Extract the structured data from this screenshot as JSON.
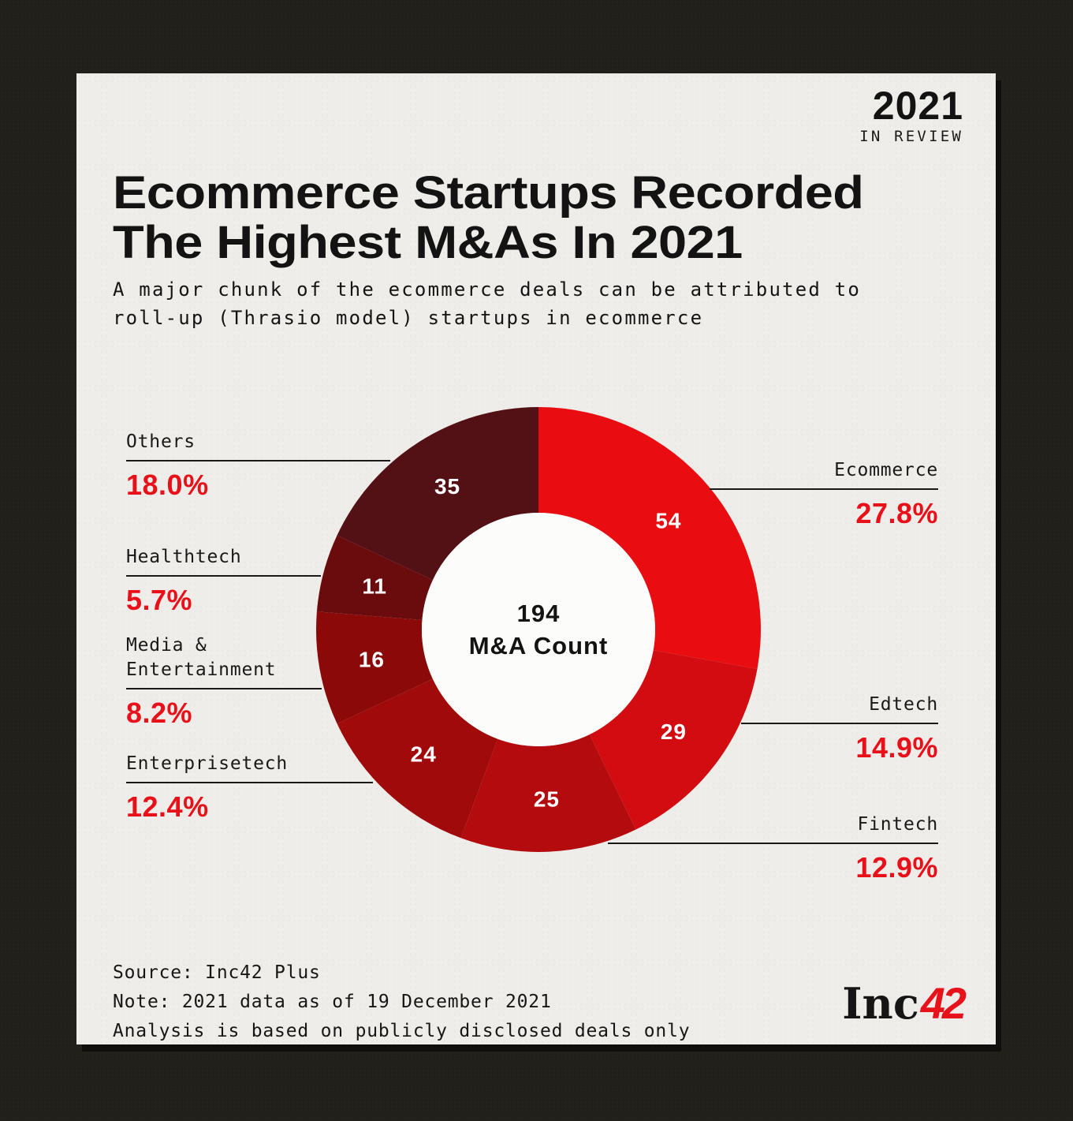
{
  "badge": {
    "year": "2021",
    "tagline": "IN REVIEW"
  },
  "title": {
    "line1": "Ecommerce Startups Recorded",
    "line2": "The Highest M&As In 2021"
  },
  "subtitle": {
    "line1": "A major chunk of the ecommerce deals can be attributed to",
    "line2": "roll-up (Thrasio model) startups in ecommerce"
  },
  "chart_data": {
    "type": "pie",
    "subtype": "donut",
    "title": "Ecommerce Startups Recorded The Highest M&As In 2021",
    "total": 194,
    "center_label": {
      "value": "194",
      "label": "M&A Count"
    },
    "start_angle_deg": 0,
    "direction": "clockwise",
    "inner_radius_ratio": 0.525,
    "legend_position": "callouts-left-right",
    "segments": [
      {
        "label": "Ecommerce",
        "value": 54,
        "pct": "27.8%",
        "color": "#e90d12",
        "side": "right"
      },
      {
        "label": "Edtech",
        "value": 29,
        "pct": "14.9%",
        "color": "#d20c10",
        "side": "right"
      },
      {
        "label": "Fintech",
        "value": 25,
        "pct": "12.9%",
        "color": "#b40b0e",
        "side": "right"
      },
      {
        "label": "Enterprisetech",
        "value": 24,
        "pct": "12.4%",
        "color": "#a00a0b",
        "side": "left"
      },
      {
        "label": "Media & Entertainment",
        "value": 16,
        "pct": "8.2%",
        "color": "#8c0909",
        "side": "left"
      },
      {
        "label": "Healthtech",
        "value": 11,
        "pct": "5.7%",
        "color": "#6a0c0d",
        "side": "left"
      },
      {
        "label": "Others",
        "value": 35,
        "pct": "18.0%",
        "color": "#531115",
        "side": "left"
      }
    ]
  },
  "footer": {
    "line1": "Source: Inc42 Plus",
    "line2": "Note: 2021 data as of 19 December 2021",
    "line3": "Analysis is based on publicly disclosed deals only",
    "logo_black": "Inc",
    "logo_red": "42"
  },
  "colors": {
    "accent": "#e8111a",
    "card_bg": "#efede9",
    "page_bg": "#21201b",
    "ink": "#131313",
    "donut_hole": "#fcfcfa",
    "segment_number_text": "#ffffff"
  }
}
